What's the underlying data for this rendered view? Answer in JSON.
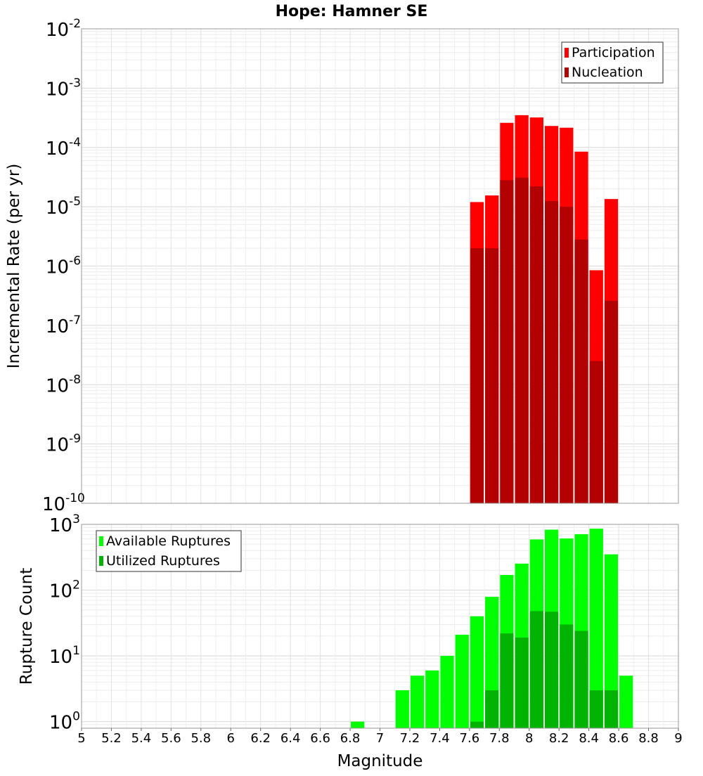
{
  "chart_data": [
    {
      "type": "bar",
      "title": "Hope: Hamner SE",
      "xlabel": "",
      "ylabel": "Incremental Rate (per yr)",
      "xlim": [
        5,
        9
      ],
      "ylim_log10": [
        -10,
        -2
      ],
      "y_scale": "log",
      "grid": true,
      "legend_position": "top-right",
      "bar_width": 0.1,
      "series": [
        {
          "name": "Participation",
          "color": "#ff0000",
          "x": [
            7.65,
            7.75,
            7.85,
            7.95,
            8.05,
            8.15,
            8.25,
            8.35,
            8.45,
            8.55
          ],
          "values": [
            1.2e-05,
            1.55e-05,
            0.00026,
            0.00035,
            0.00032,
            0.00023,
            0.000215,
            8.5e-05,
            8.5e-07,
            1.35e-05
          ]
        },
        {
          "name": "Nucleation",
          "color": "#b30000",
          "x": [
            7.65,
            7.75,
            7.85,
            7.95,
            8.05,
            8.15,
            8.25,
            8.35,
            8.45,
            8.55
          ],
          "values": [
            2e-06,
            2e-06,
            2.8e-05,
            3.1e-05,
            2.2e-05,
            1.25e-05,
            1e-05,
            2.8e-06,
            2.5e-08,
            2.6e-07
          ]
        }
      ]
    },
    {
      "type": "bar",
      "title": "",
      "xlabel": "Magnitude",
      "ylabel": "Rupture Count",
      "xlim": [
        5,
        9
      ],
      "ylim_log10": [
        -0.1,
        3
      ],
      "y_scale": "log",
      "grid": true,
      "legend_position": "top-left",
      "bar_width": 0.1,
      "x_ticks": [
        "5",
        "5.2",
        "5.4",
        "5.6",
        "5.8",
        "6",
        "6.2",
        "6.4",
        "6.6",
        "6.8",
        "7",
        "7.2",
        "7.4",
        "7.6",
        "7.8",
        "8",
        "8.2",
        "8.4",
        "8.6",
        "8.8",
        "9"
      ],
      "series": [
        {
          "name": "Available Ruptures",
          "color": "#00ff00",
          "x": [
            6.85,
            7.15,
            7.25,
            7.35,
            7.45,
            7.55,
            7.65,
            7.75,
            7.85,
            7.95,
            8.05,
            8.15,
            8.25,
            8.35,
            8.45,
            8.55,
            8.65
          ],
          "values": [
            1,
            3,
            5,
            6,
            10,
            21,
            40,
            79,
            170,
            253,
            590,
            830,
            610,
            710,
            860,
            350,
            5
          ]
        },
        {
          "name": "Utilized Ruptures",
          "color": "#00b300",
          "x": [
            7.65,
            7.75,
            7.85,
            7.95,
            8.05,
            8.15,
            8.25,
            8.35,
            8.45,
            8.55
          ],
          "values": [
            1,
            3,
            22,
            19,
            48,
            47,
            30,
            24,
            3,
            3
          ]
        }
      ]
    }
  ]
}
